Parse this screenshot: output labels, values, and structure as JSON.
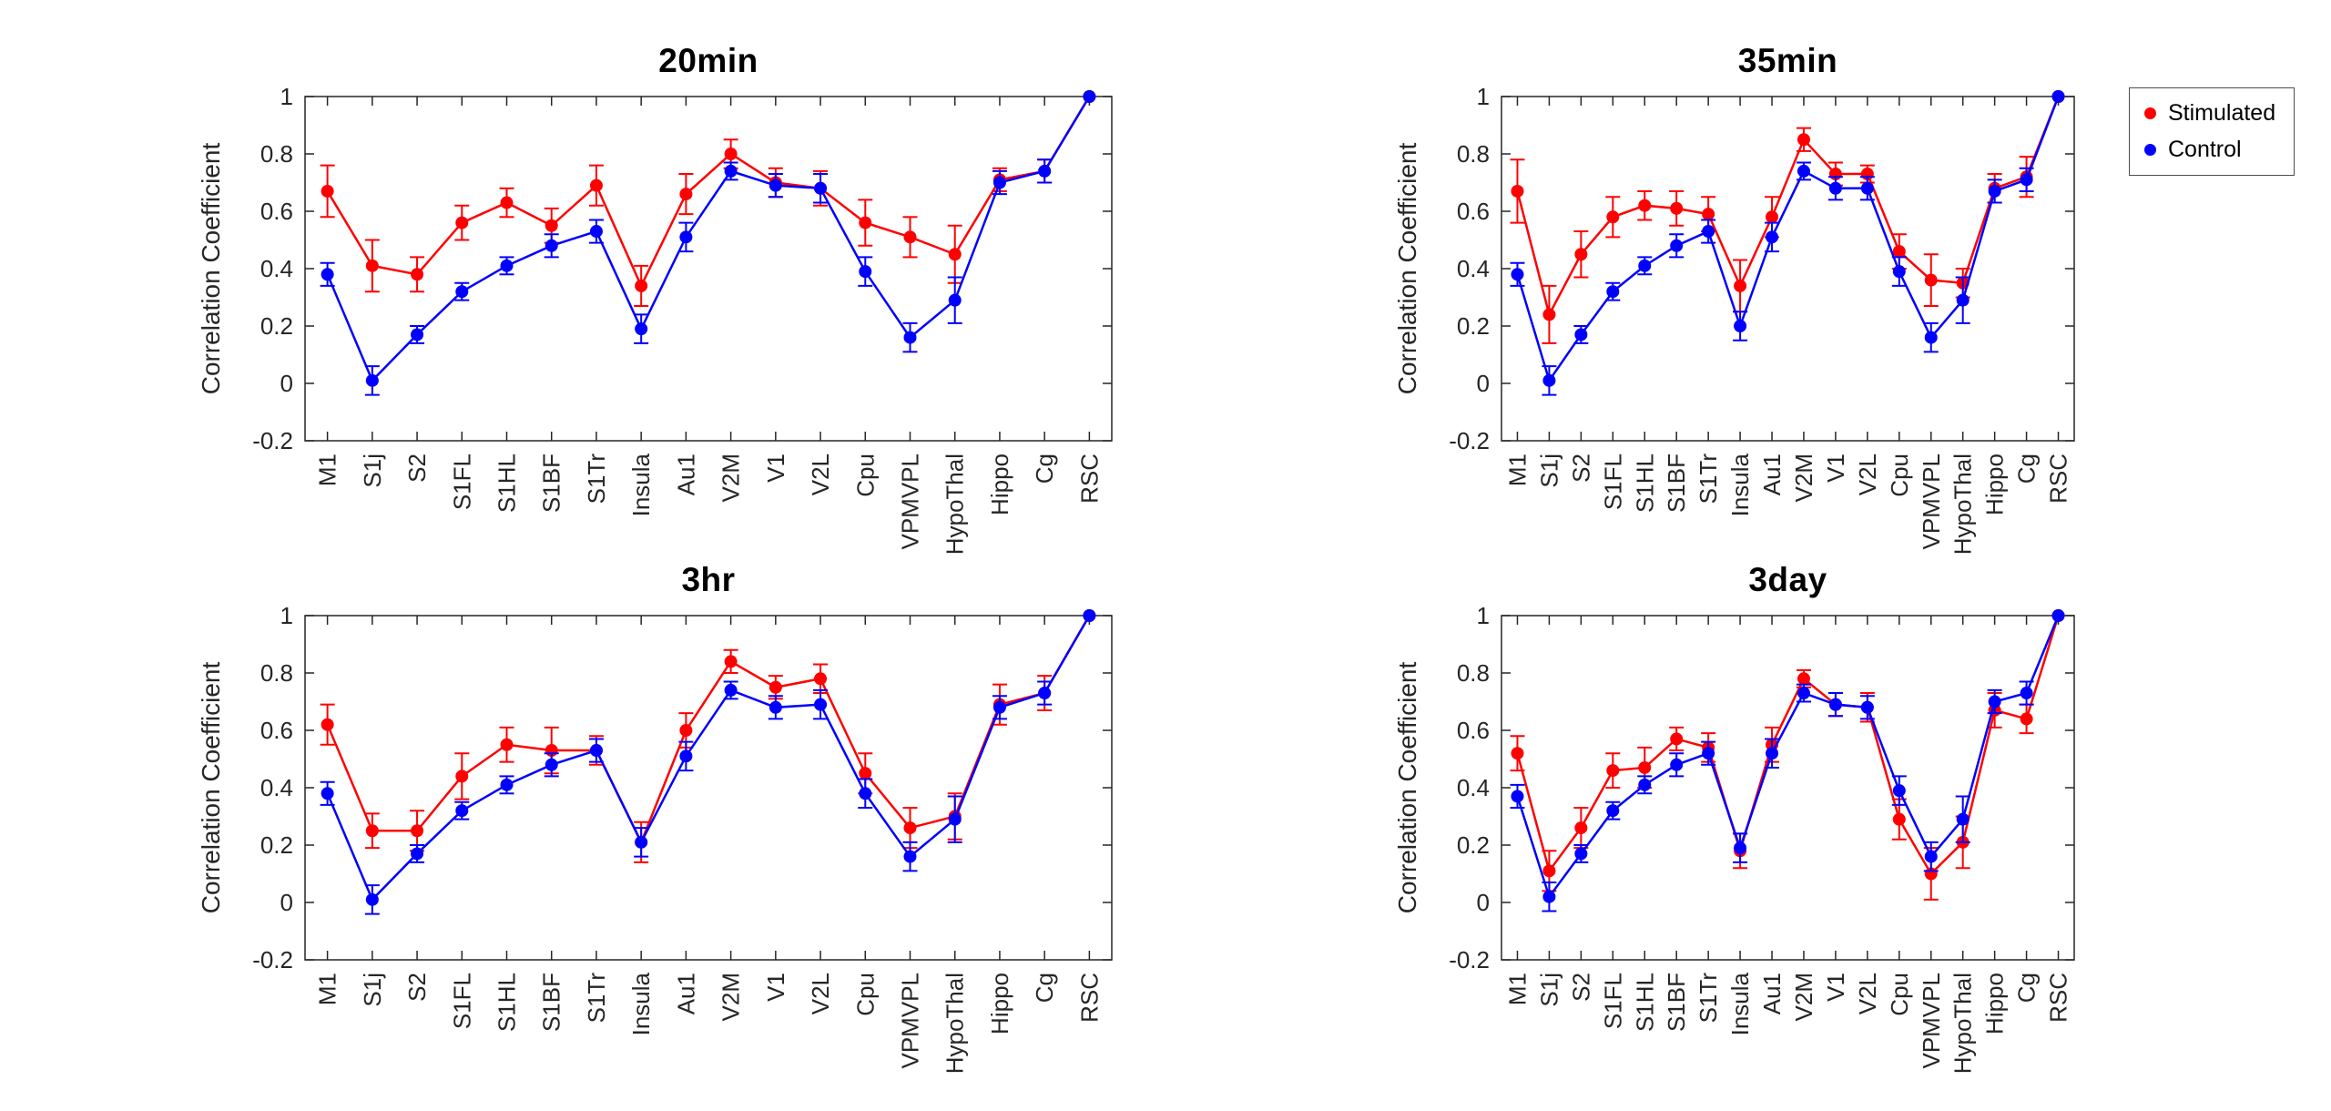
{
  "figure": {
    "background": "#ffffff",
    "axis_color": "#262626",
    "ylabel": "Correlation Coefficient",
    "ylim": [
      -0.2,
      1
    ],
    "yticks": {
      "values": [
        -0.2,
        0,
        0.2,
        0.4,
        0.6,
        0.8,
        1
      ],
      "labels": [
        "-0.2",
        "0",
        "0.2",
        "0.4",
        "0.6",
        "0.8",
        "1"
      ]
    },
    "grid": false
  },
  "legend": {
    "position": "northeast-outside",
    "entries": [
      {
        "label": "Stimulated",
        "color": "#ff0000"
      },
      {
        "label": "Control",
        "color": "#0000ff"
      }
    ]
  },
  "chart_data": [
    {
      "type": "line",
      "title": "20min",
      "xlabel": "",
      "ylabel": "Correlation Coefficient",
      "ylim": [
        -0.2,
        1
      ],
      "grid": false,
      "categories": [
        "M1",
        "S1j",
        "S2",
        "S1FL",
        "S1HL",
        "S1BF",
        "S1Tr",
        "Insula",
        "Au1",
        "V2M",
        "V1",
        "V2L",
        "Cpu",
        "VPMVPL",
        "HypoThal",
        "Hippo",
        "Cg",
        "RSC"
      ],
      "series": [
        {
          "name": "Stimulated",
          "color": "#ff0000",
          "values": [
            0.67,
            0.41,
            0.38,
            0.56,
            0.63,
            0.55,
            0.69,
            0.34,
            0.66,
            0.8,
            0.7,
            0.68,
            0.56,
            0.51,
            0.45,
            0.71,
            0.74,
            1.0
          ],
          "errors": [
            0.09,
            0.09,
            0.06,
            0.06,
            0.05,
            0.06,
            0.07,
            0.07,
            0.07,
            0.05,
            0.05,
            0.06,
            0.08,
            0.07,
            0.1,
            0.04,
            0.04,
            0
          ]
        },
        {
          "name": "Control",
          "color": "#0000ff",
          "values": [
            0.38,
            0.01,
            0.17,
            0.32,
            0.41,
            0.48,
            0.53,
            0.19,
            0.51,
            0.74,
            0.69,
            0.68,
            0.39,
            0.16,
            0.29,
            0.7,
            0.74,
            1.0
          ],
          "errors": [
            0.04,
            0.05,
            0.03,
            0.03,
            0.03,
            0.04,
            0.04,
            0.05,
            0.05,
            0.03,
            0.04,
            0.05,
            0.05,
            0.05,
            0.08,
            0.04,
            0.04,
            0
          ]
        }
      ]
    },
    {
      "type": "line",
      "title": "35min",
      "xlabel": "",
      "ylabel": "Correlation Coefficient",
      "ylim": [
        -0.2,
        1
      ],
      "grid": false,
      "categories": [
        "M1",
        "S1j",
        "S2",
        "S1FL",
        "S1HL",
        "S1BF",
        "S1Tr",
        "Insula",
        "Au1",
        "V2M",
        "V1",
        "V2L",
        "Cpu",
        "VPMVPL",
        "HypoThal",
        "Hippo",
        "Cg",
        "RSC"
      ],
      "series": [
        {
          "name": "Stimulated",
          "color": "#ff0000",
          "values": [
            0.67,
            0.24,
            0.45,
            0.58,
            0.62,
            0.61,
            0.59,
            0.34,
            0.58,
            0.85,
            0.73,
            0.73,
            0.46,
            0.36,
            0.35,
            0.68,
            0.72,
            1.0
          ],
          "errors": [
            0.11,
            0.1,
            0.08,
            0.07,
            0.05,
            0.06,
            0.06,
            0.09,
            0.07,
            0.04,
            0.04,
            0.03,
            0.06,
            0.09,
            0.05,
            0.05,
            0.07,
            0
          ]
        },
        {
          "name": "Control",
          "color": "#0000ff",
          "values": [
            0.38,
            0.01,
            0.17,
            0.32,
            0.41,
            0.48,
            0.53,
            0.2,
            0.51,
            0.74,
            0.68,
            0.68,
            0.39,
            0.16,
            0.29,
            0.67,
            0.71,
            1.0
          ],
          "errors": [
            0.04,
            0.05,
            0.03,
            0.03,
            0.03,
            0.04,
            0.04,
            0.05,
            0.05,
            0.03,
            0.04,
            0.04,
            0.05,
            0.05,
            0.08,
            0.04,
            0.04,
            0
          ]
        }
      ]
    },
    {
      "type": "line",
      "title": "3hr",
      "xlabel": "",
      "ylabel": "Correlation Coefficient",
      "ylim": [
        -0.2,
        1
      ],
      "grid": false,
      "categories": [
        "M1",
        "S1j",
        "S2",
        "S1FL",
        "S1HL",
        "S1BF",
        "S1Tr",
        "Insula",
        "Au1",
        "V2M",
        "V1",
        "V2L",
        "Cpu",
        "VPMVPL",
        "HypoThal",
        "Hippo",
        "Cg",
        "RSC"
      ],
      "series": [
        {
          "name": "Stimulated",
          "color": "#ff0000",
          "values": [
            0.62,
            0.25,
            0.25,
            0.44,
            0.55,
            0.53,
            0.53,
            0.21,
            0.6,
            0.84,
            0.75,
            0.78,
            0.45,
            0.26,
            0.3,
            0.69,
            0.73,
            1.0
          ],
          "errors": [
            0.07,
            0.06,
            0.07,
            0.08,
            0.06,
            0.08,
            0.05,
            0.07,
            0.06,
            0.04,
            0.04,
            0.05,
            0.07,
            0.07,
            0.08,
            0.07,
            0.06,
            0
          ]
        },
        {
          "name": "Control",
          "color": "#0000ff",
          "values": [
            0.38,
            0.01,
            0.17,
            0.32,
            0.41,
            0.48,
            0.53,
            0.21,
            0.51,
            0.74,
            0.68,
            0.69,
            0.38,
            0.16,
            0.29,
            0.68,
            0.73,
            1.0
          ],
          "errors": [
            0.04,
            0.05,
            0.03,
            0.03,
            0.03,
            0.04,
            0.04,
            0.05,
            0.05,
            0.03,
            0.04,
            0.05,
            0.05,
            0.05,
            0.08,
            0.04,
            0.04,
            0
          ]
        }
      ]
    },
    {
      "type": "line",
      "title": "3day",
      "xlabel": "",
      "ylabel": "Correlation Coefficient",
      "ylim": [
        -0.2,
        1
      ],
      "grid": false,
      "categories": [
        "M1",
        "S1j",
        "S2",
        "S1FL",
        "S1HL",
        "S1BF",
        "S1Tr",
        "Insula",
        "Au1",
        "V2M",
        "V1",
        "V2L",
        "Cpu",
        "VPMVPL",
        "HypoThal",
        "Hippo",
        "Cg",
        "RSC"
      ],
      "series": [
        {
          "name": "Stimulated",
          "color": "#ff0000",
          "values": [
            0.52,
            0.11,
            0.26,
            0.46,
            0.47,
            0.57,
            0.54,
            0.18,
            0.55,
            0.78,
            0.69,
            0.68,
            0.29,
            0.1,
            0.21,
            0.67,
            0.64,
            1.0
          ],
          "errors": [
            0.06,
            0.07,
            0.07,
            0.06,
            0.07,
            0.04,
            0.05,
            0.06,
            0.06,
            0.03,
            0.04,
            0.05,
            0.07,
            0.09,
            0.09,
            0.06,
            0.05,
            0
          ]
        },
        {
          "name": "Control",
          "color": "#0000ff",
          "values": [
            0.37,
            0.02,
            0.17,
            0.32,
            0.41,
            0.48,
            0.52,
            0.19,
            0.52,
            0.73,
            0.69,
            0.68,
            0.39,
            0.16,
            0.29,
            0.7,
            0.73,
            1.0
          ],
          "errors": [
            0.04,
            0.05,
            0.03,
            0.03,
            0.03,
            0.04,
            0.04,
            0.05,
            0.05,
            0.03,
            0.04,
            0.04,
            0.05,
            0.05,
            0.08,
            0.04,
            0.04,
            0
          ]
        }
      ]
    }
  ]
}
